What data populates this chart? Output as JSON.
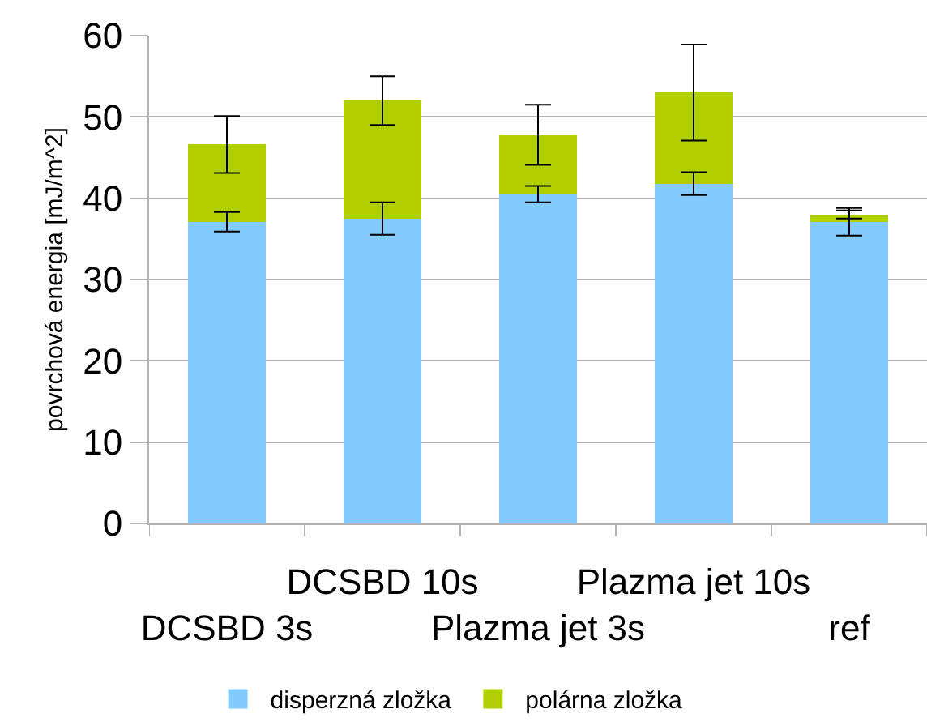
{
  "chart_data": {
    "type": "bar",
    "stacked": true,
    "ylabel": "povrchová energia [mJ/m^2]",
    "categories": [
      "DCSBD 3s",
      "DCSBD 10s",
      "Plazma jet 3s",
      "Plazma jet 10s",
      "ref"
    ],
    "series": [
      {
        "name": "disperzná zložka",
        "color": "#83caff",
        "values": [
          37.1,
          37.5,
          40.5,
          41.8,
          37.1
        ],
        "errors": [
          1.2,
          2.0,
          1.0,
          1.4,
          1.7
        ]
      },
      {
        "name": "polárna zložka",
        "color": "#b2d000",
        "values": [
          9.5,
          14.5,
          7.3,
          11.2,
          0.9
        ],
        "errors": [
          3.5,
          3.0,
          3.7,
          5.9,
          0.5
        ]
      }
    ],
    "ylim": [
      0,
      60
    ],
    "yticks": [
      0,
      10,
      20,
      30,
      40,
      50,
      60
    ],
    "grid": "y",
    "legend": "bottom"
  }
}
